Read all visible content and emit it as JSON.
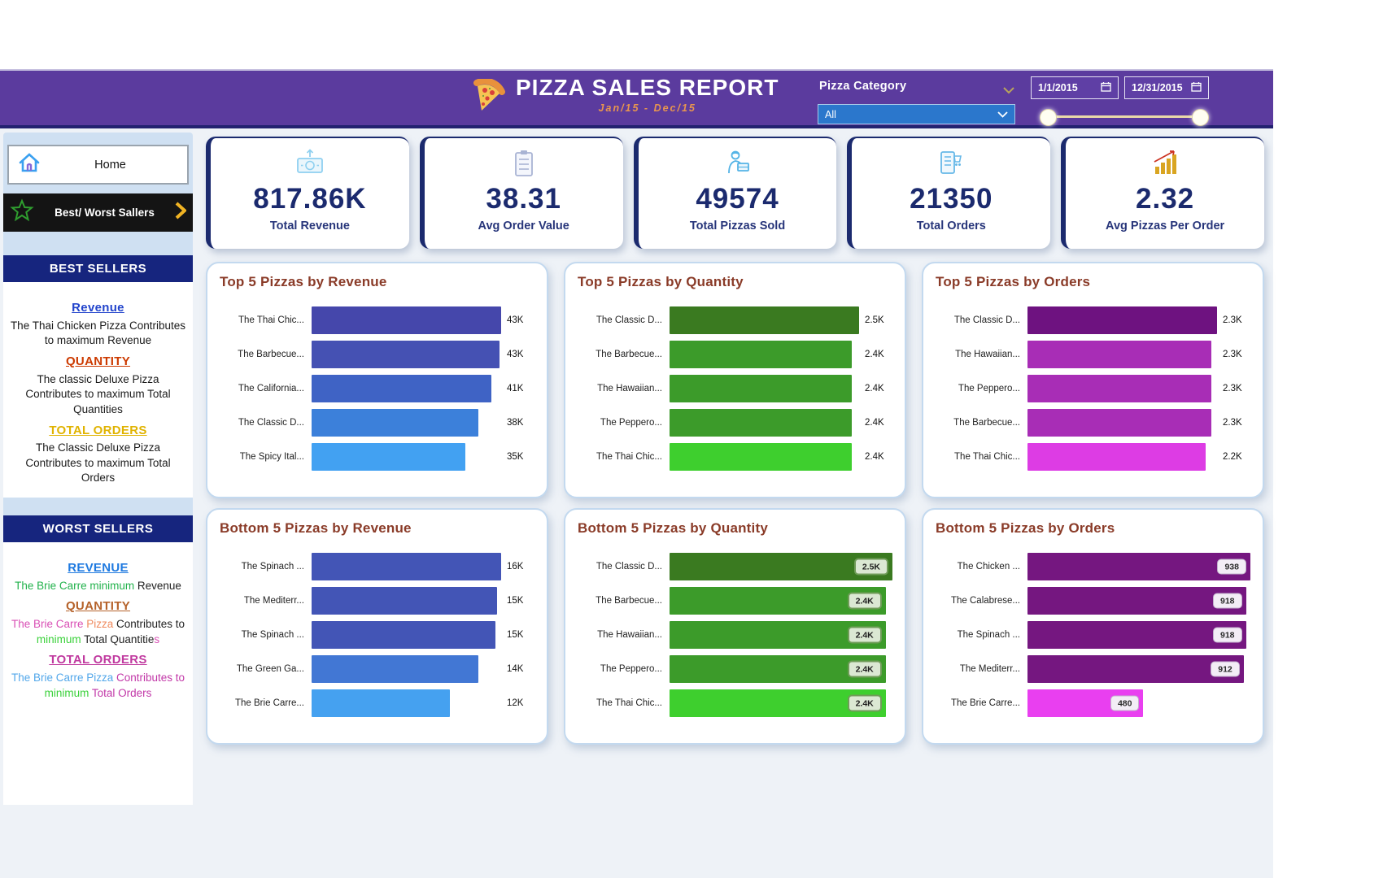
{
  "header": {
    "title": "PIZZA SALES REPORT",
    "subtitle": "Jan/15  -  Dec/15",
    "category_label": "Pizza Category",
    "category_value": "All",
    "date_from": "1/1/2015",
    "date_to": "12/31/2015",
    "accent_purple": "#5b3b9e"
  },
  "sidebar": {
    "home_label": "Home",
    "best_worst_label": "Best/ Worst Sallers",
    "best": {
      "header": "BEST SELLERS",
      "revenue_title": "Revenue",
      "revenue_text": "The Thai Chicken Pizza Contributes to maximum Revenue",
      "quantity_title": "QUANTITY",
      "quantity_text": "The classic Deluxe Pizza Contributes to maximum Total Quantities",
      "orders_title": "TOTAL ORDERS",
      "orders_text": "The Classic Deluxe Pizza Contributes to maximum Total Orders",
      "title_colors": {
        "revenue": "#2244cc",
        "quantity": "#cc3a00",
        "orders": "#e0b300"
      }
    },
    "worst": {
      "header": "WORST SELLERS",
      "revenue_title": "REVENUE",
      "revenue_segments": [
        {
          "t": "The Brie Carre minimum ",
          "c": "#22b24c"
        },
        {
          "t": "Revenue",
          "c": "#222222"
        }
      ],
      "quantity_title": "QUANTITY",
      "quantity_segments": [
        {
          "t": "The Brie Carre ",
          "c": "#d94fb5"
        },
        {
          "t": "Pizza ",
          "c": "#ef8a5e"
        },
        {
          "t": "Contributes to ",
          "c": "#222222"
        },
        {
          "t": "minimum ",
          "c": "#3ad13a"
        },
        {
          "t": "Total Quantitie",
          "c": "#222222"
        },
        {
          "t": "s",
          "c": "#d94fb5"
        }
      ],
      "orders_title": "TOTAL ORDERS",
      "orders_segments": [
        {
          "t": "The Brie Carre Pizza ",
          "c": "#52a7ea"
        },
        {
          "t": "Contributes to ",
          "c": "#c238a8"
        },
        {
          "t": "minimum ",
          "c": "#3ad13a"
        },
        {
          "t": "Total Orders",
          "c": "#c238a8"
        }
      ],
      "title_colors": {
        "revenue": "#1f7ae0",
        "quantity": "#b5622a",
        "orders": "#c0399f"
      }
    }
  },
  "kpis": {
    "items": [
      {
        "icon": "money-icon",
        "value": "817.86K",
        "label": "Total Revenue"
      },
      {
        "icon": "clipboard-icon",
        "value": "38.31",
        "label": "Avg Order Value"
      },
      {
        "icon": "delivery-person-icon",
        "value": "49574",
        "label": "Total Pizzas Sold"
      },
      {
        "icon": "order-list-icon",
        "value": "21350",
        "label": "Total Orders"
      },
      {
        "icon": "growth-chart-icon",
        "value": "2.32",
        "label": "Avg Pizzas Per Order"
      }
    ]
  },
  "chart_data": [
    {
      "type": "bar",
      "orientation": "horizontal",
      "value_style": "text",
      "title": "Top 5 Pizzas by Revenue",
      "rows": [
        {
          "label": "The Thai Chic...",
          "value": "43K",
          "ratio": 1.0,
          "color": "#4547ab"
        },
        {
          "label": "The Barbecue...",
          "value": "43K",
          "ratio": 0.99,
          "color": "#4551b3"
        },
        {
          "label": "The California...",
          "value": "41K",
          "ratio": 0.95,
          "color": "#3f63c5"
        },
        {
          "label": "The Classic D...",
          "value": "38K",
          "ratio": 0.88,
          "color": "#3c80da"
        },
        {
          "label": "The Spicy Ital...",
          "value": "35K",
          "ratio": 0.81,
          "color": "#42a1f2"
        }
      ]
    },
    {
      "type": "bar",
      "orientation": "horizontal",
      "value_style": "text",
      "title": "Top 5 Pizzas by Quantity",
      "rows": [
        {
          "label": "The Classic D...",
          "value": "2.5K",
          "ratio": 1.0,
          "color": "#3a7a20"
        },
        {
          "label": "The Barbecue...",
          "value": "2.4K",
          "ratio": 0.96,
          "color": "#3c9b2a"
        },
        {
          "label": "The Hawaiian...",
          "value": "2.4K",
          "ratio": 0.96,
          "color": "#3c9b2a"
        },
        {
          "label": "The Peppero...",
          "value": "2.4K",
          "ratio": 0.96,
          "color": "#3c9b2a"
        },
        {
          "label": "The Thai Chic...",
          "value": "2.4K",
          "ratio": 0.96,
          "color": "#3ecf2e"
        }
      ]
    },
    {
      "type": "bar",
      "orientation": "horizontal",
      "value_style": "text",
      "title": "Top 5 Pizzas by Orders",
      "rows": [
        {
          "label": "The Classic D...",
          "value": "2.3K",
          "ratio": 1.0,
          "color": "#6e1280"
        },
        {
          "label": "The Hawaiian...",
          "value": "2.3K",
          "ratio": 0.97,
          "color": "#a82db6"
        },
        {
          "label": "The Peppero...",
          "value": "2.3K",
          "ratio": 0.97,
          "color": "#a82db6"
        },
        {
          "label": "The Barbecue...",
          "value": "2.3K",
          "ratio": 0.97,
          "color": "#a82db6"
        },
        {
          "label": "The Thai Chic...",
          "value": "2.2K",
          "ratio": 0.94,
          "color": "#dd3ce4"
        }
      ]
    },
    {
      "type": "bar",
      "orientation": "horizontal",
      "value_style": "text",
      "title": "Bottom 5 Pizzas by Revenue",
      "rows": [
        {
          "label": "The Spinach ...",
          "value": "16K",
          "ratio": 1.0,
          "color": "#4355b6"
        },
        {
          "label": "The Mediterr...",
          "value": "15K",
          "ratio": 0.98,
          "color": "#4355b6"
        },
        {
          "label": "The Spinach ...",
          "value": "15K",
          "ratio": 0.97,
          "color": "#4355b6"
        },
        {
          "label": "The Green Ga...",
          "value": "14K",
          "ratio": 0.88,
          "color": "#4277d4"
        },
        {
          "label": "The Brie Carre...",
          "value": "12K",
          "ratio": 0.73,
          "color": "#45a1f0"
        }
      ]
    },
    {
      "type": "bar",
      "orientation": "horizontal",
      "value_style": "pill",
      "pill_class": "pill-green",
      "title": "Bottom 5 Pizzas by Quantity",
      "rows": [
        {
          "label": "The Classic D...",
          "value": "2.5K",
          "ratio": 1.0,
          "color": "#3a7a20"
        },
        {
          "label": "The Barbecue...",
          "value": "2.4K",
          "ratio": 0.97,
          "color": "#3c9b2a"
        },
        {
          "label": "The Hawaiian...",
          "value": "2.4K",
          "ratio": 0.97,
          "color": "#3c9b2a"
        },
        {
          "label": "The Peppero...",
          "value": "2.4K",
          "ratio": 0.97,
          "color": "#3c9b2a"
        },
        {
          "label": "The Thai Chic...",
          "value": "2.4K",
          "ratio": 0.97,
          "color": "#3ecf2e"
        }
      ]
    },
    {
      "type": "bar",
      "orientation": "horizontal",
      "value_style": "pill",
      "pill_class": "pill-plain",
      "title": "Bottom 5 Pizzas by Orders",
      "rows": [
        {
          "label": "The Chicken ...",
          "value": "938",
          "ratio": 1.0,
          "color": "#751780"
        },
        {
          "label": "The Calabrese...",
          "value": "918",
          "ratio": 0.98,
          "color": "#751780"
        },
        {
          "label": "The Spinach ...",
          "value": "918",
          "ratio": 0.98,
          "color": "#751780"
        },
        {
          "label": "The Mediterr...",
          "value": "912",
          "ratio": 0.97,
          "color": "#751780"
        },
        {
          "label": "The Brie Carre...",
          "value": "480",
          "ratio": 0.52,
          "color": "#e93ff0"
        }
      ]
    }
  ]
}
